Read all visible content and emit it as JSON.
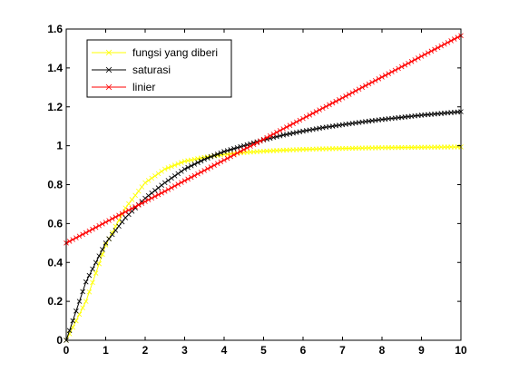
{
  "chart_data": {
    "type": "line",
    "title": "",
    "xlabel": "",
    "ylabel": "",
    "xlim": [
      0,
      10
    ],
    "ylim": [
      0,
      1.6
    ],
    "xticks": [
      0,
      1,
      2,
      3,
      4,
      5,
      6,
      7,
      8,
      9,
      10
    ],
    "yticks": [
      0,
      0.2,
      0.4,
      0.6,
      0.8,
      1,
      1.2,
      1.4,
      1.6
    ],
    "grid": false,
    "legend_position": "top-left",
    "marker": "x",
    "x": [
      0,
      0.5,
      1,
      1.5,
      2,
      2.5,
      3,
      3.5,
      4,
      4.5,
      5,
      5.5,
      6,
      6.5,
      7,
      7.5,
      8,
      8.5,
      9,
      9.5,
      10
    ],
    "series": [
      {
        "name": "fungsi yang diberi",
        "color": "#ffff00",
        "values": [
          0,
          0.2,
          0.49,
          0.68,
          0.81,
          0.88,
          0.92,
          0.94,
          0.955,
          0.965,
          0.972,
          0.977,
          0.981,
          0.984,
          0.986,
          0.988,
          0.99,
          0.991,
          0.992,
          0.993,
          0.994
        ]
      },
      {
        "name": "saturasi",
        "color": "#000000",
        "values": [
          0,
          0.3,
          0.5,
          0.63,
          0.73,
          0.81,
          0.88,
          0.93,
          0.97,
          1.0,
          1.03,
          1.055,
          1.075,
          1.093,
          1.108,
          1.122,
          1.135,
          1.146,
          1.157,
          1.166,
          1.175
        ]
      },
      {
        "name": "linier",
        "color": "#ff0000",
        "values": [
          0.5,
          0.553,
          0.607,
          0.66,
          0.713,
          0.766,
          0.82,
          0.873,
          0.926,
          0.98,
          1.033,
          1.087,
          1.14,
          1.193,
          1.246,
          1.3,
          1.353,
          1.406,
          1.46,
          1.513,
          1.566
        ]
      }
    ]
  }
}
